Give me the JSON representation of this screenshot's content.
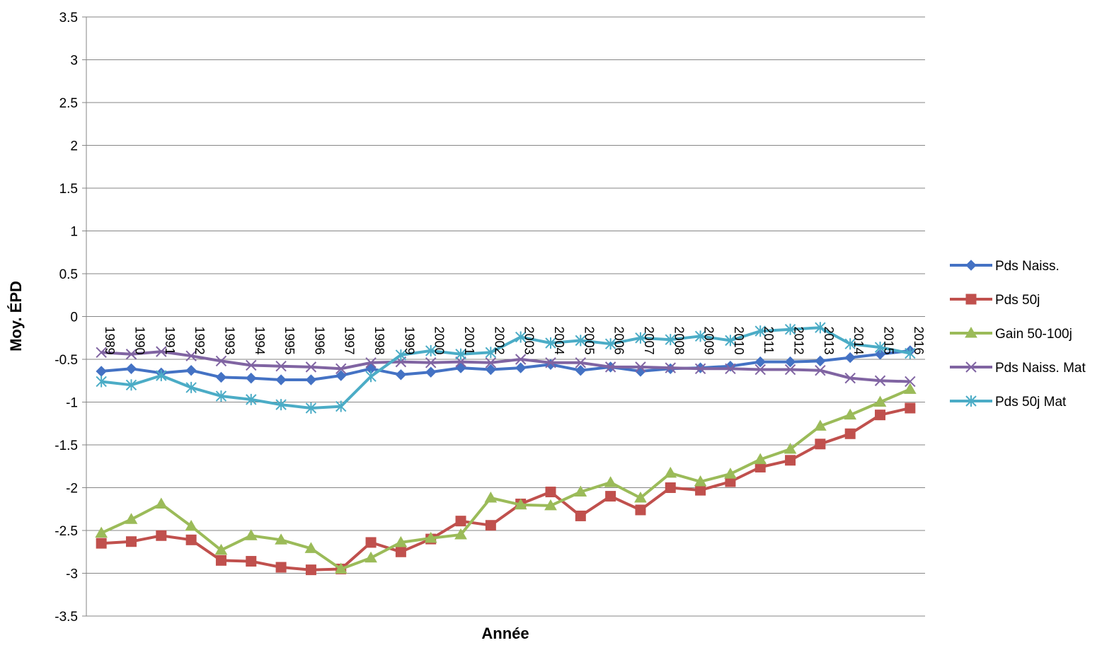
{
  "chart_data": {
    "type": "line",
    "title": "",
    "xlabel": "Année",
    "ylabel": "Moy. ÉPD",
    "ylim": [
      -3.5,
      3.5
    ],
    "ytick_step": 0.5,
    "yticks": [
      "3.5",
      "3",
      "2.5",
      "2",
      "1.5",
      "1",
      "0.5",
      "0",
      "-0.5",
      "-1",
      "-1.5",
      "-2",
      "-2.5",
      "-3",
      "-3.5"
    ],
    "grid": true,
    "legend_position": "right",
    "categories": [
      "1989",
      "1990",
      "1991",
      "1992",
      "1993",
      "1994",
      "1995",
      "1996",
      "1997",
      "1998",
      "1999",
      "2000",
      "2001",
      "2002",
      "2003",
      "2004",
      "2005",
      "2006",
      "2007",
      "2008",
      "2009",
      "2010",
      "2011",
      "2012",
      "2013",
      "2014",
      "2015",
      "2016"
    ],
    "series": [
      {
        "name": "Pds Naiss.",
        "color": "#4472c4",
        "marker": "diamond",
        "values": [
          -0.64,
          -0.61,
          -0.66,
          -0.63,
          -0.71,
          -0.72,
          -0.74,
          -0.74,
          -0.69,
          -0.61,
          -0.68,
          -0.65,
          -0.6,
          -0.62,
          -0.6,
          -0.56,
          -0.63,
          -0.59,
          -0.64,
          -0.61,
          -0.6,
          -0.58,
          -0.53,
          -0.53,
          -0.52,
          -0.48,
          -0.44,
          -0.4
        ]
      },
      {
        "name": "Pds 50j",
        "color": "#c0504d",
        "marker": "square",
        "values": [
          -2.65,
          -2.63,
          -2.56,
          -2.61,
          -2.85,
          -2.86,
          -2.93,
          -2.96,
          -2.95,
          -2.64,
          -2.75,
          -2.6,
          -2.39,
          -2.44,
          -2.19,
          -2.05,
          -2.33,
          -2.1,
          -2.26,
          -2.0,
          -2.03,
          -1.93,
          -1.76,
          -1.68,
          -1.49,
          -1.37,
          -1.15,
          -1.07
        ]
      },
      {
        "name": "Gain 50-100j",
        "color": "#9bbb59",
        "marker": "triangle",
        "values": [
          -2.53,
          -2.37,
          -2.19,
          -2.45,
          -2.73,
          -2.56,
          -2.61,
          -2.71,
          -2.95,
          -2.82,
          -2.64,
          -2.59,
          -2.55,
          -2.12,
          -2.2,
          -2.21,
          -2.05,
          -1.94,
          -2.12,
          -1.83,
          -1.93,
          -1.84,
          -1.67,
          -1.55,
          -1.28,
          -1.15,
          -1.0,
          -0.85
        ]
      },
      {
        "name": "Pds Naiss. Mat",
        "color": "#8064a2",
        "marker": "x",
        "values": [
          -0.42,
          -0.44,
          -0.41,
          -0.46,
          -0.52,
          -0.57,
          -0.58,
          -0.59,
          -0.61,
          -0.54,
          -0.53,
          -0.54,
          -0.53,
          -0.54,
          -0.5,
          -0.54,
          -0.54,
          -0.59,
          -0.59,
          -0.6,
          -0.61,
          -0.61,
          -0.62,
          -0.62,
          -0.63,
          -0.72,
          -0.75,
          -0.76
        ]
      },
      {
        "name": "Pds 50j Mat",
        "color": "#4bacc6",
        "marker": "star",
        "values": [
          -0.76,
          -0.8,
          -0.69,
          -0.83,
          -0.93,
          -0.97,
          -1.03,
          -1.07,
          -1.05,
          -0.7,
          -0.45,
          -0.4,
          -0.44,
          -0.42,
          -0.24,
          -0.31,
          -0.28,
          -0.32,
          -0.25,
          -0.27,
          -0.23,
          -0.28,
          -0.17,
          -0.15,
          -0.13,
          -0.32,
          -0.36,
          -0.43
        ]
      }
    ]
  }
}
